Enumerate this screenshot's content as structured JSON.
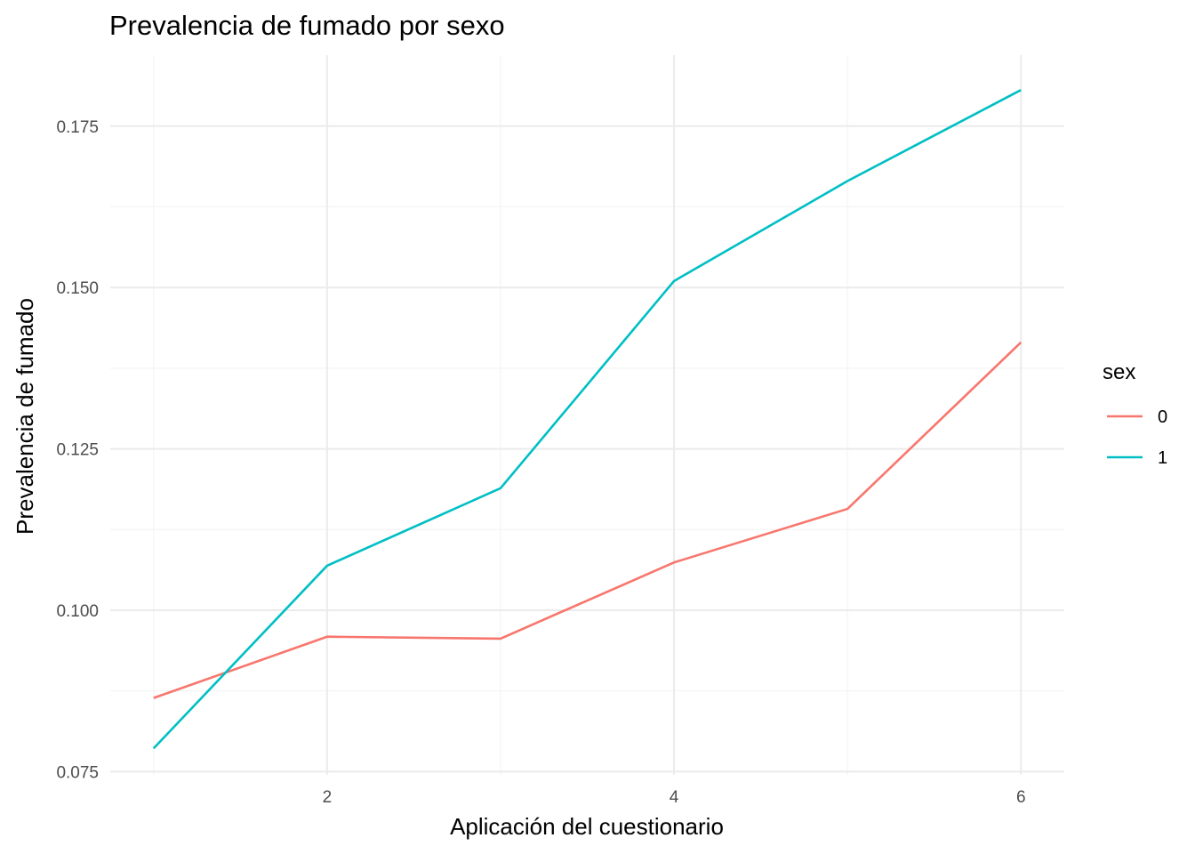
{
  "chart_data": {
    "type": "line",
    "title": "Prevalencia de fumado por sexo",
    "xlabel": "Aplicación del cuestionario",
    "ylabel": "Prevalencia de fumado",
    "x": [
      1,
      2,
      3,
      4,
      5,
      6
    ],
    "xlim": [
      0.75,
      6.25
    ],
    "ylim": [
      0.0745,
      0.186
    ],
    "x_ticks": [
      2,
      4,
      6
    ],
    "x_tick_labels": [
      "2",
      "4",
      "6"
    ],
    "y_ticks": [
      0.075,
      0.1,
      0.125,
      0.15,
      0.175
    ],
    "y_tick_labels": [
      "0.075",
      "0.100",
      "0.125",
      "0.150",
      "0.175"
    ],
    "grid": true,
    "legend": {
      "title": "sex",
      "placement": "right"
    },
    "series": [
      {
        "name": "0",
        "color": "#F8766D",
        "values": [
          0.0864,
          0.0959,
          0.0956,
          0.1074,
          0.1157,
          0.1415
        ]
      },
      {
        "name": "1",
        "color": "#00BFC4",
        "values": [
          0.0786,
          0.1069,
          0.1189,
          0.151,
          0.1665,
          0.1806
        ]
      }
    ]
  }
}
